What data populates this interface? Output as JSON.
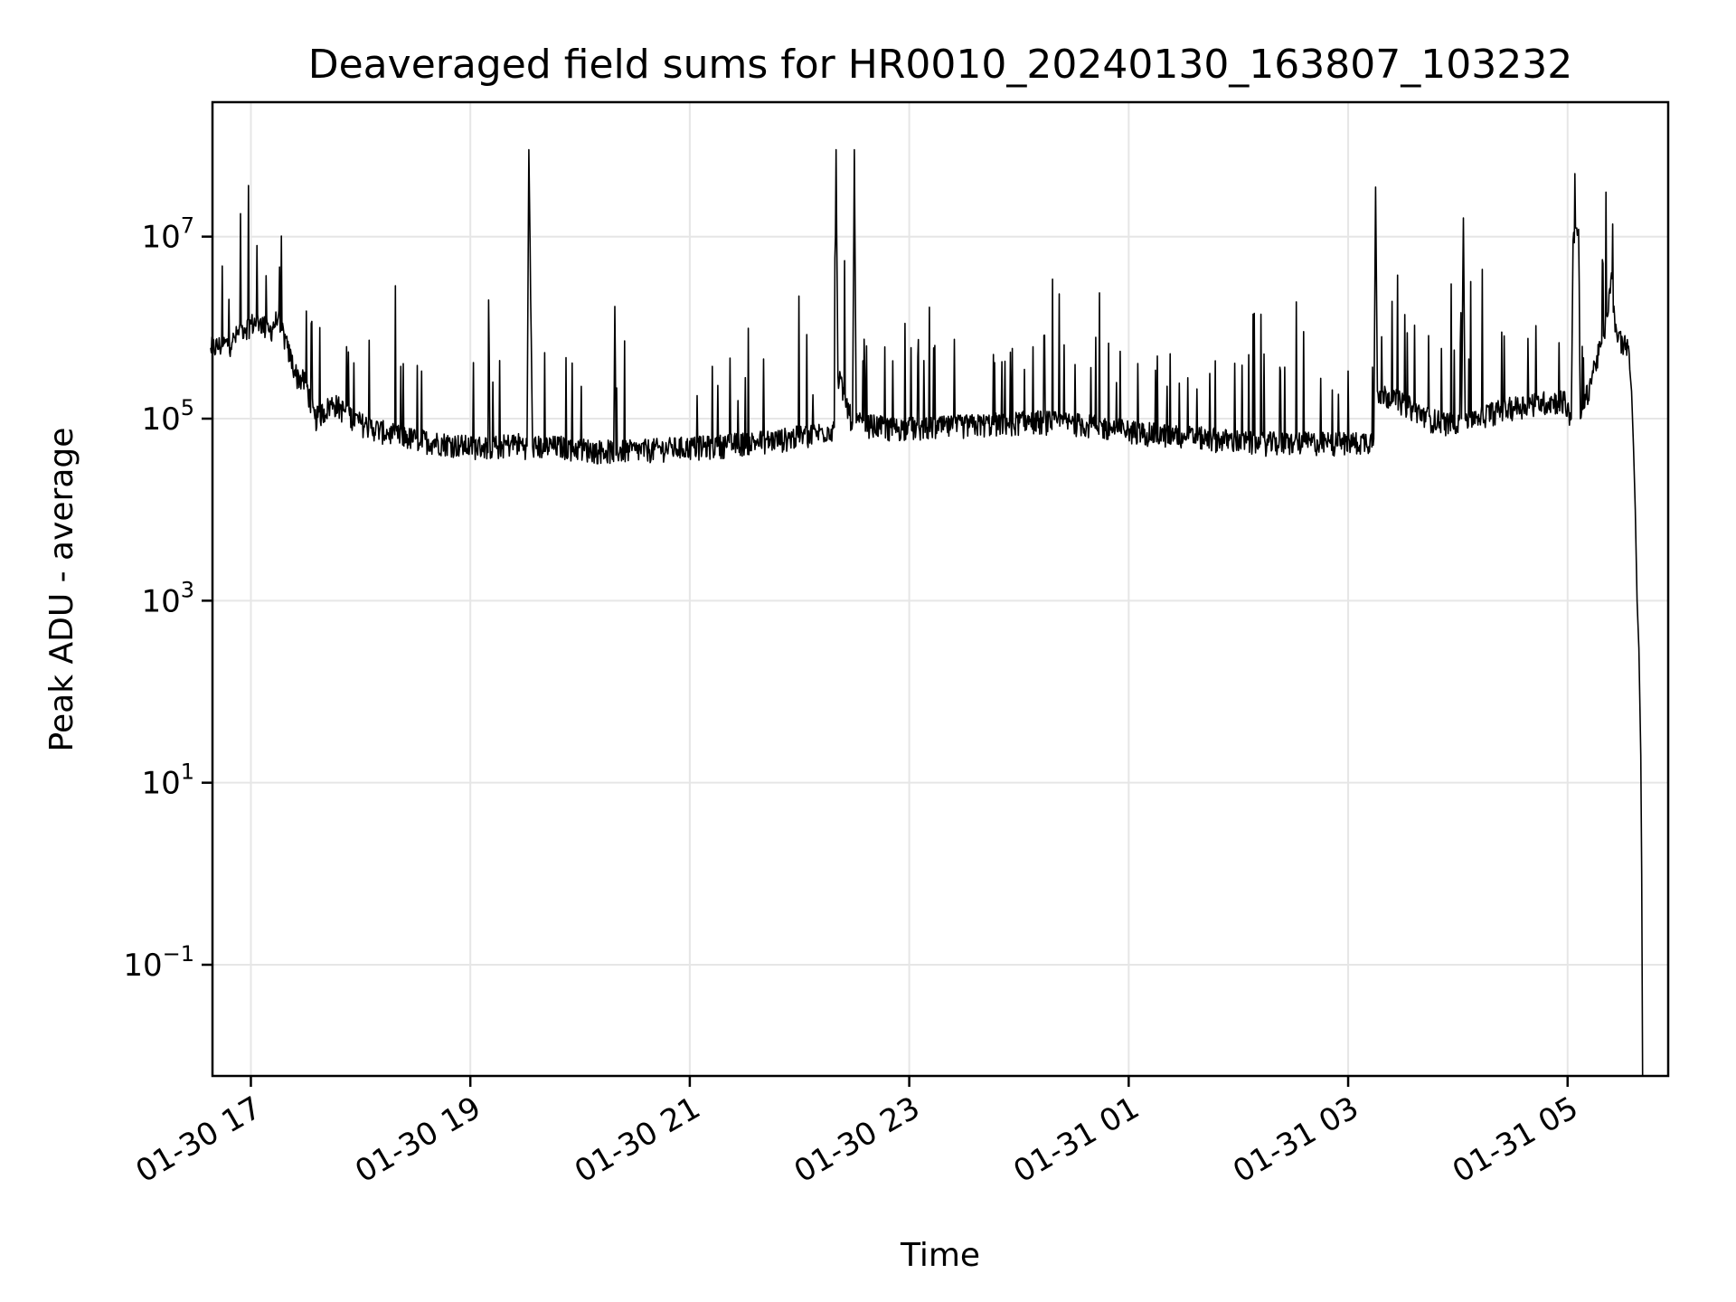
{
  "chart_data": {
    "type": "line",
    "title": "Deaveraged field sums for HR0010_20240130_163807_103232",
    "xlabel": "Time",
    "ylabel": "Peak ADU - average",
    "yscale": "log",
    "ylim": [
      0.006,
      300000000
    ],
    "xlim": [
      "2024-01-30 16:39",
      "2024-01-31 05:55"
    ],
    "grid": true,
    "line_color": "#000000",
    "x_ticks": [
      "01-30 17",
      "01-30 19",
      "01-30 21",
      "01-30 23",
      "01-31 01",
      "01-31 03",
      "01-31 05"
    ],
    "y_ticks": [
      {
        "base": "10",
        "exp": "7",
        "value": 10000000
      },
      {
        "base": "10",
        "exp": "5",
        "value": 100000
      },
      {
        "base": "10",
        "exp": "3",
        "value": 1000
      },
      {
        "base": "10",
        "exp": "1",
        "value": 10
      },
      {
        "base": "10",
        "exp": "−1",
        "value": 0.1
      }
    ],
    "series": [
      {
        "points": [
          [
            "2024-01-30 16:38",
            600000
          ],
          [
            "2024-01-30 16:45",
            650000
          ],
          [
            "2024-01-30 16:50",
            700000
          ],
          [
            "2024-01-30 16:55",
            1000000
          ],
          [
            "2024-01-30 17:00",
            1100000
          ],
          [
            "2024-01-30 17:05",
            1200000
          ],
          [
            "2024-01-30 17:10",
            900000
          ],
          [
            "2024-01-30 17:15",
            1300000
          ],
          [
            "2024-01-30 17:20",
            600000
          ],
          [
            "2024-01-30 17:25",
            300000
          ],
          [
            "2024-01-30 17:30",
            250000
          ],
          [
            "2024-01-30 17:35",
            100000
          ],
          [
            "2024-01-30 17:45",
            150000
          ],
          [
            "2024-01-30 18:00",
            90000
          ],
          [
            "2024-01-30 18:15",
            70000
          ],
          [
            "2024-01-30 18:30",
            60000
          ],
          [
            "2024-01-30 18:45",
            55000
          ],
          [
            "2024-01-30 19:00",
            50000
          ],
          [
            "2024-01-30 19:15",
            50000
          ],
          [
            "2024-01-30 19:25",
            55000
          ],
          [
            "2024-01-30 19:31",
            50000
          ],
          [
            "2024-01-30 19:32",
            90000000
          ],
          [
            "2024-01-30 19:34",
            50000
          ],
          [
            "2024-01-30 19:50",
            50000
          ],
          [
            "2024-01-30 20:10",
            45000
          ],
          [
            "2024-01-30 20:30",
            45000
          ],
          [
            "2024-01-30 20:50",
            48000
          ],
          [
            "2024-01-30 21:10",
            50000
          ],
          [
            "2024-01-30 21:30",
            55000
          ],
          [
            "2024-01-30 21:50",
            60000
          ],
          [
            "2024-01-30 22:10",
            70000
          ],
          [
            "2024-01-30 22:19",
            80000
          ],
          [
            "2024-01-30 22:20",
            90000000
          ],
          [
            "2024-01-30 22:21",
            300000
          ],
          [
            "2024-01-30 22:29",
            90000
          ],
          [
            "2024-01-30 22:30",
            90000000
          ],
          [
            "2024-01-30 22:31",
            90000
          ],
          [
            "2024-01-30 22:50",
            80000
          ],
          [
            "2024-01-30 23:10",
            80000
          ],
          [
            "2024-01-30 23:30",
            85000
          ],
          [
            "2024-01-30 23:50",
            90000
          ],
          [
            "2024-01-31 00:10",
            95000
          ],
          [
            "2024-01-31 00:30",
            90000
          ],
          [
            "2024-01-31 00:50",
            80000
          ],
          [
            "2024-01-31 01:10",
            70000
          ],
          [
            "2024-01-31 01:30",
            65000
          ],
          [
            "2024-01-31 01:50",
            60000
          ],
          [
            "2024-01-31 02:10",
            55000
          ],
          [
            "2024-01-31 02:30",
            55000
          ],
          [
            "2024-01-31 02:50",
            55000
          ],
          [
            "2024-01-31 03:05",
            55000
          ],
          [
            "2024-01-31 03:14",
            60000
          ],
          [
            "2024-01-31 03:15",
            35000000
          ],
          [
            "2024-01-31 03:16",
            200000
          ],
          [
            "2024-01-31 03:30",
            150000
          ],
          [
            "2024-01-31 03:45",
            100000
          ],
          [
            "2024-01-31 03:55",
            90000
          ],
          [
            "2024-01-31 04:02",
            100000
          ],
          [
            "2024-01-31 04:03",
            16000000
          ],
          [
            "2024-01-31 04:04",
            100000
          ],
          [
            "2024-01-31 04:20",
            120000
          ],
          [
            "2024-01-31 04:40",
            150000
          ],
          [
            "2024-01-31 04:58",
            160000
          ],
          [
            "2024-01-31 05:02",
            100000
          ],
          [
            "2024-01-31 05:03",
            9000000
          ],
          [
            "2024-01-31 05:06",
            12000000
          ],
          [
            "2024-01-31 05:07",
            100000
          ],
          [
            "2024-01-31 05:15",
            400000
          ],
          [
            "2024-01-31 05:20",
            800000
          ],
          [
            "2024-01-31 05:24",
            4000000
          ],
          [
            "2024-01-31 05:26",
            900000
          ],
          [
            "2024-01-31 05:30",
            700000
          ],
          [
            "2024-01-31 05:33",
            600000
          ],
          [
            "2024-01-31 05:35",
            200000
          ],
          [
            "2024-01-31 05:36",
            50000
          ],
          [
            "2024-01-31 05:37",
            10000
          ],
          [
            "2024-01-31 05:38",
            1000
          ],
          [
            "2024-01-31 05:39",
            300
          ],
          [
            "2024-01-31 05:40",
            20
          ],
          [
            "2024-01-31 05:40:30",
            1
          ],
          [
            "2024-01-31 05:41",
            0.006
          ]
        ]
      }
    ]
  }
}
